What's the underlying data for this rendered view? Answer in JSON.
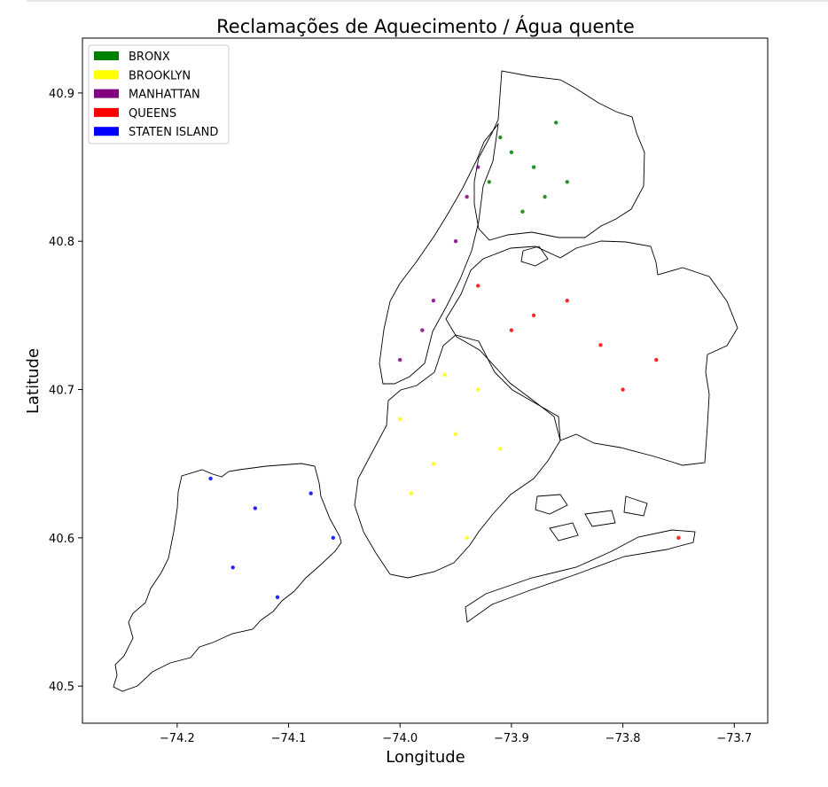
{
  "chart_data": {
    "type": "scatter",
    "title": "Reclamações de Aquecimento / Água quente",
    "xlabel": "Longitude",
    "ylabel": "Latitude",
    "xlim": [
      -74.285,
      -73.67
    ],
    "ylim": [
      40.475,
      40.937
    ],
    "xticks": [
      -74.2,
      -74.1,
      -74.0,
      -73.9,
      -73.8,
      -73.7
    ],
    "xtick_labels": [
      "−74.2",
      "−74.1",
      "−74.0",
      "−73.9",
      "−73.8",
      "−73.7"
    ],
    "yticks": [
      40.5,
      40.6,
      40.7,
      40.8,
      40.9
    ],
    "ytick_labels": [
      "40.5",
      "40.6",
      "40.7",
      "40.8",
      "40.9"
    ],
    "legend_position": "top-left",
    "grid": false,
    "series": [
      {
        "name": "BRONX",
        "color": "#008000",
        "points": [
          [
            -73.9,
            40.86
          ],
          [
            -73.92,
            40.84
          ],
          [
            -73.88,
            40.85
          ],
          [
            -73.86,
            40.88
          ],
          [
            -73.87,
            40.83
          ],
          [
            -73.91,
            40.87
          ],
          [
            -73.89,
            40.82
          ],
          [
            -73.85,
            40.84
          ]
        ]
      },
      {
        "name": "BROOKLYN",
        "color": "#ffff00",
        "points": [
          [
            -73.95,
            40.67
          ],
          [
            -73.97,
            40.65
          ],
          [
            -73.93,
            40.7
          ],
          [
            -73.99,
            40.63
          ],
          [
            -73.94,
            40.6
          ],
          [
            -73.91,
            40.66
          ],
          [
            -74.0,
            40.68
          ],
          [
            -73.96,
            40.71
          ]
        ]
      },
      {
        "name": "MANHATTAN",
        "color": "#800080",
        "points": [
          [
            -73.95,
            40.8
          ],
          [
            -73.94,
            40.83
          ],
          [
            -73.97,
            40.76
          ],
          [
            -73.98,
            40.74
          ],
          [
            -74.0,
            40.72
          ],
          [
            -73.93,
            40.85
          ]
        ]
      },
      {
        "name": "QUEENS",
        "color": "#ff0000",
        "points": [
          [
            -73.88,
            40.75
          ],
          [
            -73.82,
            40.73
          ],
          [
            -73.9,
            40.74
          ],
          [
            -73.8,
            40.7
          ],
          [
            -73.85,
            40.76
          ],
          [
            -73.77,
            40.72
          ],
          [
            -73.93,
            40.77
          ],
          [
            -73.75,
            40.6
          ]
        ]
      },
      {
        "name": "STATEN ISLAND",
        "color": "#0000ff",
        "points": [
          [
            -74.13,
            40.62
          ],
          [
            -74.08,
            40.63
          ],
          [
            -74.11,
            40.56
          ],
          [
            -74.06,
            40.6
          ],
          [
            -74.17,
            40.64
          ],
          [
            -74.15,
            40.58
          ]
        ]
      }
    ]
  }
}
